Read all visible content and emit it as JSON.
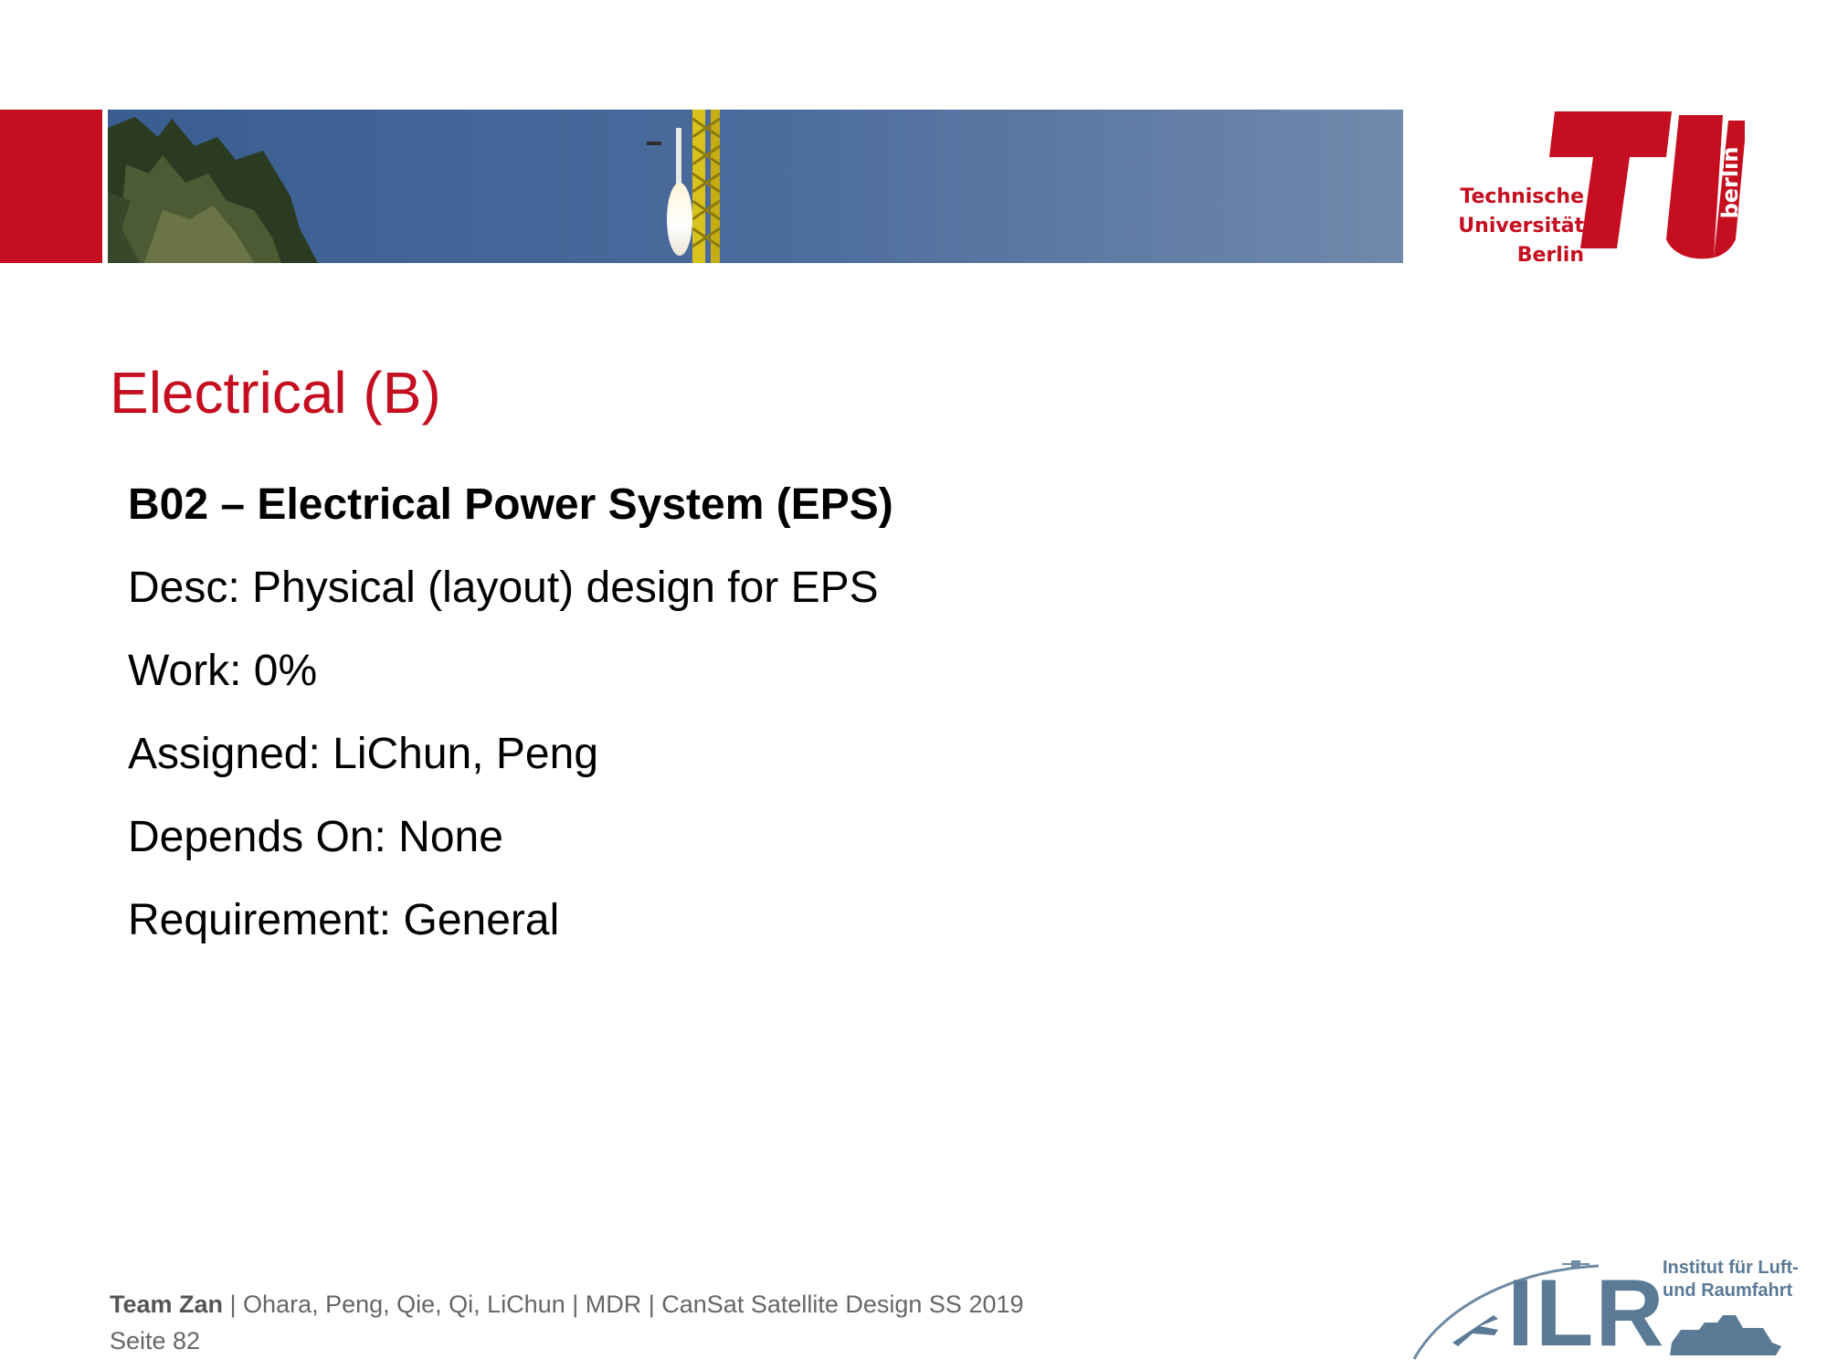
{
  "header": {
    "university_logo": {
      "lines": [
        "Technische",
        "Universität",
        "Berlin"
      ],
      "vertical": "berlin",
      "color": "#c50e1f"
    }
  },
  "slide": {
    "title": "Electrical (B)",
    "heading": "B02 – Electrical Power System (EPS)",
    "desc": "Desc: Physical (layout) design for EPS",
    "work": "Work: 0%",
    "assigned": "Assigned: LiChun, Peng",
    "depends_on": "Depends On: None",
    "requirement": "Requirement: General"
  },
  "footer": {
    "team": "Team Zan",
    "details": " | Ohara, Peng, Qie, Qi, LiChun | MDR | CanSat Satellite Design SS 2019",
    "page": "Seite 82"
  },
  "institute_logo": {
    "letters": "ILR",
    "line1": "Institut für Luft-",
    "line2": "und Raumfahrt"
  },
  "colors": {
    "accent": "#c50e1f",
    "footer_text": "#666666",
    "ilr_blue": "#5a7a96"
  }
}
